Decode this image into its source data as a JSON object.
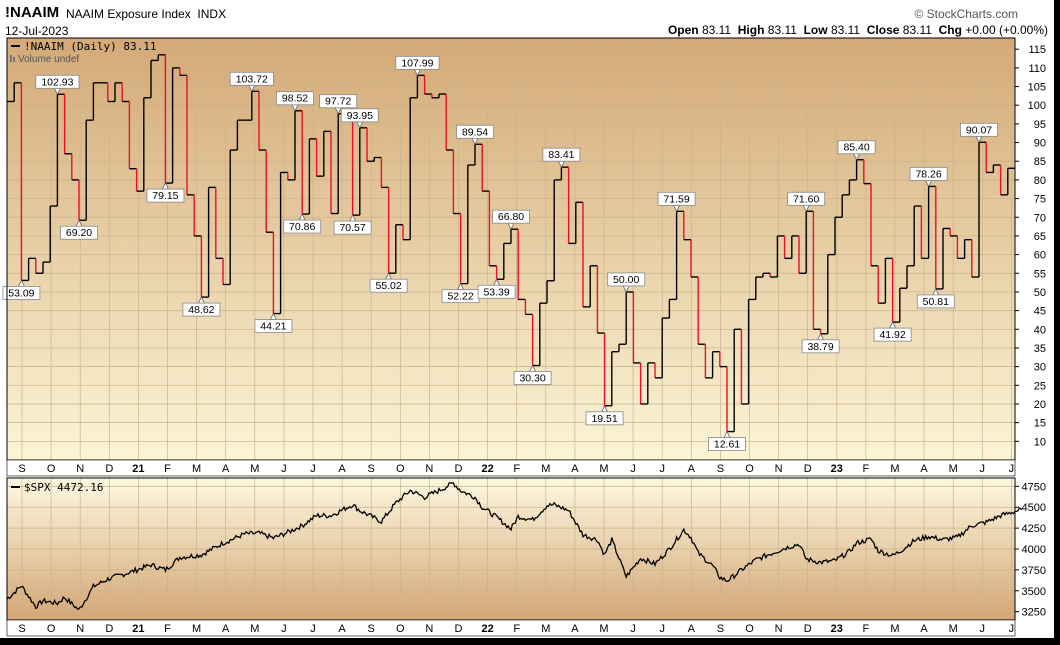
{
  "header": {
    "symbol": "!NAAIM",
    "name": "NAAIM Exposure Index",
    "exchange": "INDX",
    "date": "12-Jul-2023",
    "credit": "© StockCharts.com",
    "open_label": "Open",
    "open": "83.11",
    "high_label": "High",
    "high": "83.11",
    "low_label": "Low",
    "low": "83.11",
    "close_label": "Close",
    "close": "83.11",
    "chg_label": "Chg",
    "chg": "+0.00 (+0.00%)"
  },
  "colors": {
    "up_line": "#000000",
    "down_line": "#e8102a",
    "panel_top": "#d4a976",
    "panel_bottom": "#fbf5d6",
    "lower_top": "#fdf8e0",
    "lower_bottom": "#d3a675",
    "grid": "#c9b48a"
  },
  "chart_data": [
    {
      "type": "line",
      "legend": "!NAAIM (Daily) 83.11",
      "legend_sub": "Volume undef",
      "ylim": [
        5,
        118
      ],
      "yticks": [
        10,
        15,
        20,
        25,
        30,
        35,
        40,
        45,
        50,
        55,
        60,
        65,
        70,
        75,
        80,
        85,
        90,
        95,
        100,
        105,
        110,
        115
      ],
      "x_ticks": [
        "S",
        "O",
        "N",
        "D",
        "21",
        "F",
        "M",
        "A",
        "M",
        "J",
        "J",
        "A",
        "S",
        "O",
        "N",
        "D",
        "22",
        "F",
        "M",
        "A",
        "M",
        "J",
        "J",
        "A",
        "S",
        "O",
        "N",
        "D",
        "23",
        "F",
        "M",
        "A",
        "M",
        "J",
        "J"
      ],
      "x_start": "2020-08-26",
      "interval_days": 7,
      "values": [
        101.0,
        106.0,
        53.09,
        59.0,
        55.0,
        58.0,
        73.0,
        102.93,
        87.0,
        80.0,
        69.2,
        96.0,
        106.0,
        106.0,
        101.0,
        106.0,
        101.0,
        83.0,
        77.0,
        102.0,
        112.0,
        113.5,
        79.15,
        110.0,
        108.0,
        76.0,
        65.0,
        48.62,
        78.0,
        59.0,
        52.0,
        88.0,
        96.0,
        96.0,
        103.72,
        88.0,
        66.0,
        44.21,
        82.0,
        80.0,
        98.52,
        70.86,
        91.0,
        81.0,
        93.0,
        71.0,
        97.72,
        97.0,
        70.57,
        93.95,
        85.0,
        86.0,
        78.0,
        55.02,
        68.0,
        64.0,
        102.0,
        107.99,
        103.0,
        102.0,
        103.0,
        88.0,
        71.0,
        52.22,
        84.0,
        89.54,
        77.0,
        57.0,
        53.39,
        63.0,
        66.8,
        48.0,
        44.0,
        30.3,
        47.0,
        53.0,
        80.0,
        83.41,
        63.0,
        74.0,
        46.0,
        57.0,
        39.0,
        19.51,
        34.0,
        36.0,
        50.0,
        31.0,
        20.0,
        31.0,
        27.0,
        43.0,
        48.0,
        71.59,
        64.0,
        54.0,
        36.0,
        27.0,
        34.0,
        30.0,
        12.61,
        40.0,
        20.0,
        48.0,
        54.0,
        55.0,
        54.0,
        65.0,
        59.0,
        65.0,
        55.0,
        71.6,
        40.0,
        38.79,
        60.0,
        70.0,
        76.0,
        80.0,
        85.4,
        79.0,
        57.0,
        47.0,
        59.0,
        41.92,
        51.0,
        57.0,
        73.0,
        59.0,
        78.26,
        50.81,
        67.0,
        65.0,
        59.0,
        64.0,
        54.0,
        90.07,
        82.0,
        84.0,
        76.0,
        83.11,
        83.11
      ],
      "peak_labels": [
        {
          "i": 2,
          "text": "53.09",
          "pos": "below"
        },
        {
          "i": 7,
          "text": "102.93",
          "pos": "above"
        },
        {
          "i": 10,
          "text": "69.20",
          "pos": "below"
        },
        {
          "i": 22,
          "text": "79.15",
          "pos": "below"
        },
        {
          "i": 27,
          "text": "48.62",
          "pos": "below"
        },
        {
          "i": 34,
          "text": "103.72",
          "pos": "above"
        },
        {
          "i": 37,
          "text": "44.21",
          "pos": "below"
        },
        {
          "i": 40,
          "text": "98.52",
          "pos": "above"
        },
        {
          "i": 41,
          "text": "70.86",
          "pos": "below"
        },
        {
          "i": 46,
          "text": "97.72",
          "pos": "above"
        },
        {
          "i": 48,
          "text": "70.57",
          "pos": "below"
        },
        {
          "i": 49,
          "text": "93.95",
          "pos": "above"
        },
        {
          "i": 53,
          "text": "55.02",
          "pos": "below"
        },
        {
          "i": 57,
          "text": "107.99",
          "pos": "above"
        },
        {
          "i": 63,
          "text": "52.22",
          "pos": "below"
        },
        {
          "i": 65,
          "text": "89.54",
          "pos": "above"
        },
        {
          "i": 68,
          "text": "53.39",
          "pos": "below"
        },
        {
          "i": 70,
          "text": "66.80",
          "pos": "above"
        },
        {
          "i": 73,
          "text": "30.30",
          "pos": "below"
        },
        {
          "i": 77,
          "text": "83.41",
          "pos": "above"
        },
        {
          "i": 83,
          "text": "19.51",
          "pos": "below"
        },
        {
          "i": 86,
          "text": "50.00",
          "pos": "above"
        },
        {
          "i": 93,
          "text": "71.59",
          "pos": "above"
        },
        {
          "i": 100,
          "text": "12.61",
          "pos": "below"
        },
        {
          "i": 111,
          "text": "71.60",
          "pos": "above"
        },
        {
          "i": 113,
          "text": "38.79",
          "pos": "below"
        },
        {
          "i": 118,
          "text": "85.40",
          "pos": "above"
        },
        {
          "i": 123,
          "text": "41.92",
          "pos": "below"
        },
        {
          "i": 128,
          "text": "78.26",
          "pos": "above"
        },
        {
          "i": 129,
          "text": "50.81",
          "pos": "below"
        },
        {
          "i": 135,
          "text": "90.07",
          "pos": "above"
        }
      ]
    },
    {
      "type": "line",
      "legend": "$SPX 4472.16",
      "ylim": [
        3150,
        4850
      ],
      "yticks": [
        3250,
        3500,
        3750,
        4000,
        4250,
        4500,
        4750
      ],
      "x_ticks": [
        "S",
        "O",
        "N",
        "D",
        "21",
        "F",
        "M",
        "A",
        "M",
        "J",
        "J",
        "A",
        "S",
        "O",
        "N",
        "D",
        "22",
        "F",
        "M",
        "A",
        "M",
        "J",
        "J",
        "A",
        "S",
        "O",
        "N",
        "D",
        "23",
        "F",
        "M",
        "A",
        "M",
        "J",
        "J"
      ],
      "anchors": [
        [
          0,
          3400
        ],
        [
          2,
          3560
        ],
        [
          4,
          3310
        ],
        [
          5,
          3380
        ],
        [
          7,
          3350
        ],
        [
          8,
          3420
        ],
        [
          10,
          3270
        ],
        [
          12,
          3550
        ],
        [
          14,
          3640
        ],
        [
          17,
          3720
        ],
        [
          20,
          3810
        ],
        [
          22,
          3750
        ],
        [
          24,
          3900
        ],
        [
          27,
          3930
        ],
        [
          30,
          4070
        ],
        [
          33,
          4180
        ],
        [
          35,
          4190
        ],
        [
          37,
          4130
        ],
        [
          39,
          4200
        ],
        [
          41,
          4280
        ],
        [
          43,
          4400
        ],
        [
          45,
          4400
        ],
        [
          48,
          4530
        ],
        [
          49,
          4460
        ],
        [
          52,
          4330
        ],
        [
          54,
          4550
        ],
        [
          56,
          4700
        ],
        [
          58,
          4620
        ],
        [
          60,
          4700
        ],
        [
          62,
          4790
        ],
        [
          63,
          4700
        ],
        [
          65,
          4620
        ],
        [
          66,
          4500
        ],
        [
          68,
          4380
        ],
        [
          70,
          4240
        ],
        [
          71,
          4390
        ],
        [
          73,
          4350
        ],
        [
          75,
          4520
        ],
        [
          76,
          4530
        ],
        [
          78,
          4460
        ],
        [
          80,
          4170
        ],
        [
          82,
          4110
        ],
        [
          83,
          3930
        ],
        [
          84,
          4110
        ],
        [
          86,
          3670
        ],
        [
          88,
          3890
        ],
        [
          90,
          3820
        ],
        [
          92,
          4000
        ],
        [
          94,
          4230
        ],
        [
          95,
          4140
        ],
        [
          96,
          3950
        ],
        [
          98,
          3800
        ],
        [
          99,
          3660
        ],
        [
          100,
          3620
        ],
        [
          101,
          3680
        ],
        [
          102,
          3750
        ],
        [
          104,
          3870
        ],
        [
          106,
          3940
        ],
        [
          108,
          4010
        ],
        [
          110,
          4060
        ],
        [
          111,
          3880
        ],
        [
          113,
          3840
        ],
        [
          115,
          3860
        ],
        [
          117,
          3970
        ],
        [
          118,
          4070
        ],
        [
          120,
          4120
        ],
        [
          121,
          3980
        ],
        [
          123,
          3920
        ],
        [
          124,
          3970
        ],
        [
          126,
          4100
        ],
        [
          128,
          4150
        ],
        [
          130,
          4110
        ],
        [
          132,
          4140
        ],
        [
          134,
          4280
        ],
        [
          136,
          4320
        ],
        [
          138,
          4400
        ],
        [
          140,
          4450
        ],
        [
          141,
          4472
        ]
      ]
    }
  ]
}
